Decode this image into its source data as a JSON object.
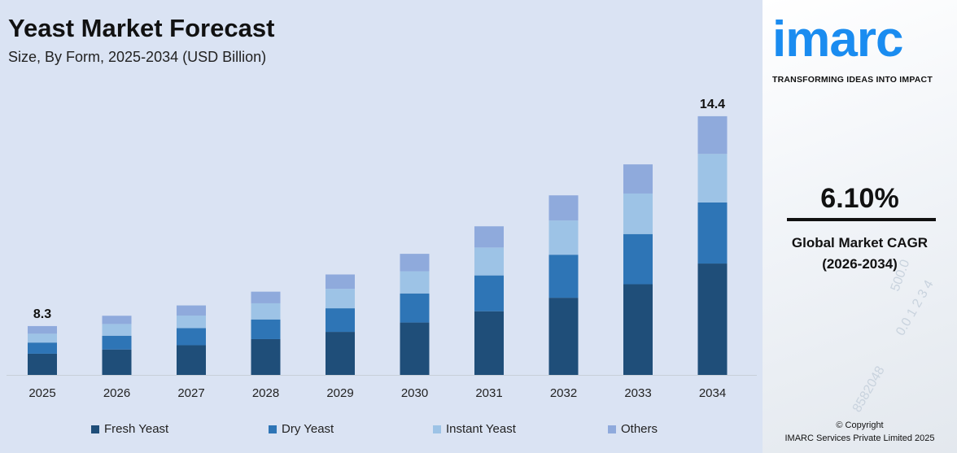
{
  "header": {
    "title": "Yeast Market Forecast",
    "subtitle": "Size, By Form, 2025-2034 (USD Billion)"
  },
  "chart_data": {
    "type": "bar",
    "stacked": true,
    "categories": [
      "2025",
      "2026",
      "2027",
      "2028",
      "2029",
      "2030",
      "2031",
      "2032",
      "2033",
      "2034"
    ],
    "series": [
      {
        "name": "Fresh Yeast",
        "color": "#1f4e79",
        "values": [
          3.6,
          3.7,
          3.8,
          4.0,
          4.2,
          4.5,
          4.8,
          5.2,
          5.6,
          6.2
        ]
      },
      {
        "name": "Dry Yeast",
        "color": "#2e75b6",
        "values": [
          1.9,
          2.0,
          2.2,
          2.2,
          2.3,
          2.5,
          2.7,
          2.9,
          3.1,
          3.4
        ]
      },
      {
        "name": "Instant Yeast",
        "color": "#9dc3e6",
        "values": [
          1.5,
          1.7,
          1.6,
          1.8,
          1.9,
          1.9,
          2.1,
          2.3,
          2.5,
          2.7
        ]
      },
      {
        "name": "Others",
        "color": "#8faadc",
        "values": [
          1.3,
          1.2,
          1.3,
          1.3,
          1.4,
          1.5,
          1.6,
          1.7,
          1.8,
          2.1
        ]
      }
    ],
    "data_labels": {
      "2025": "8.3",
      "2034": "14.4"
    },
    "legend_position": "bottom",
    "grid": false
  },
  "brand": {
    "logo": "imarc",
    "tagline": "TRANSFORMING IDEAS INTO IMPACT",
    "accent": "#1a8cf0"
  },
  "cagr": {
    "value": "6.10%",
    "label": "Global Market CAGR",
    "period": "(2026-2034)"
  },
  "footer": {
    "copyright": "© Copyright",
    "company": "IMARC Services Private Limited 2025"
  }
}
